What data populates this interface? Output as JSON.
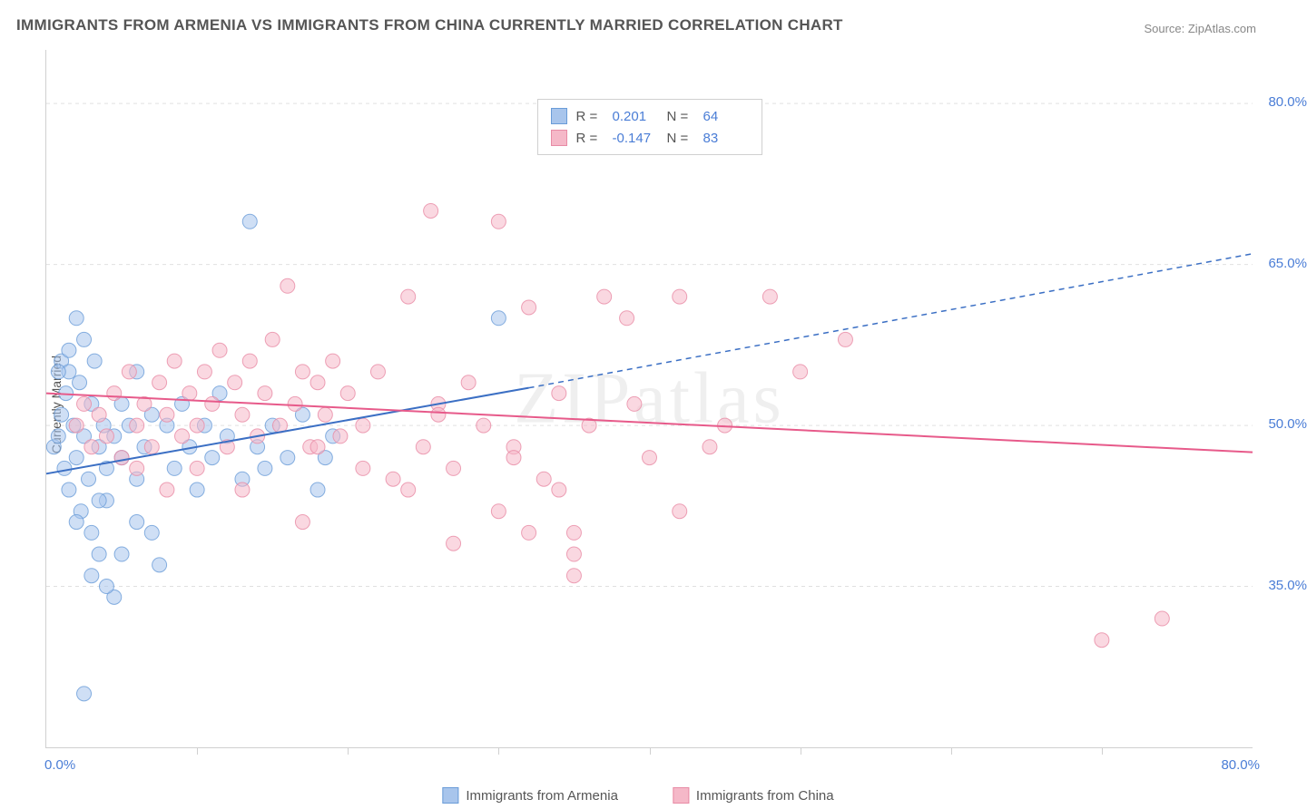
{
  "title": "IMMIGRANTS FROM ARMENIA VS IMMIGRANTS FROM CHINA CURRENTLY MARRIED CORRELATION CHART",
  "source_prefix": "Source: ",
  "source_name": "ZipAtlas.com",
  "ylabel": "Currently Married",
  "watermark": "ZIPatlas",
  "chart": {
    "type": "scatter",
    "xlim": [
      0,
      80
    ],
    "ylim": [
      20,
      85
    ],
    "x_min_label": "0.0%",
    "x_max_label": "80.0%",
    "y_ticks": [
      35.0,
      50.0,
      65.0,
      80.0
    ],
    "y_tick_labels": [
      "35.0%",
      "50.0%",
      "65.0%",
      "80.0%"
    ],
    "x_tick_positions": [
      0,
      10,
      20,
      30,
      40,
      50,
      60,
      70,
      80
    ],
    "background_color": "#ffffff",
    "grid_color": "#e0e0e0",
    "border_color": "#d0d0d0",
    "marker_radius": 8,
    "marker_opacity": 0.55,
    "line_width": 2,
    "dash_pattern": "6,5",
    "series": [
      {
        "name": "Immigrants from Armenia",
        "color_fill": "#a8c5ec",
        "color_stroke": "#6a9cd8",
        "line_color": "#3b6fc4",
        "R": "0.201",
        "N": "64",
        "trend_start": {
          "x": 0,
          "y": 45.5
        },
        "trend_solid_end": {
          "x": 32,
          "y": 53.5
        },
        "trend_end": {
          "x": 80,
          "y": 66
        },
        "points": [
          [
            0.5,
            48
          ],
          [
            0.8,
            49
          ],
          [
            1,
            51
          ],
          [
            1,
            56
          ],
          [
            1.2,
            46
          ],
          [
            1.3,
            53
          ],
          [
            1.5,
            55
          ],
          [
            1.5,
            44
          ],
          [
            1.8,
            50
          ],
          [
            2,
            60
          ],
          [
            2,
            47
          ],
          [
            2.2,
            54
          ],
          [
            2.3,
            42
          ],
          [
            2.5,
            58
          ],
          [
            2.5,
            49
          ],
          [
            2.8,
            45
          ],
          [
            3,
            52
          ],
          [
            3,
            40
          ],
          [
            3.2,
            56
          ],
          [
            3.5,
            48
          ],
          [
            3.5,
            38
          ],
          [
            3.8,
            50
          ],
          [
            4,
            46
          ],
          [
            4,
            43
          ],
          [
            4.5,
            49
          ],
          [
            4.5,
            34
          ],
          [
            5,
            52
          ],
          [
            5,
            47
          ],
          [
            5.5,
            50
          ],
          [
            6,
            45
          ],
          [
            6,
            55
          ],
          [
            6.5,
            48
          ],
          [
            7,
            51
          ],
          [
            7,
            40
          ],
          [
            7.5,
            37
          ],
          [
            8,
            50
          ],
          [
            8.5,
            46
          ],
          [
            9,
            52
          ],
          [
            9.5,
            48
          ],
          [
            10,
            44
          ],
          [
            10.5,
            50
          ],
          [
            11,
            47
          ],
          [
            11.5,
            53
          ],
          [
            12,
            49
          ],
          [
            13,
            45
          ],
          [
            13.5,
            69
          ],
          [
            14,
            48
          ],
          [
            14.5,
            46
          ],
          [
            15,
            50
          ],
          [
            16,
            47
          ],
          [
            17,
            51
          ],
          [
            18,
            44
          ],
          [
            18.5,
            47
          ],
          [
            19,
            49
          ],
          [
            30,
            60
          ],
          [
            2.5,
            25
          ],
          [
            3,
            36
          ],
          [
            4,
            35
          ],
          [
            1.5,
            57
          ],
          [
            0.8,
            55
          ],
          [
            2,
            41
          ],
          [
            3.5,
            43
          ],
          [
            5,
            38
          ],
          [
            6,
            41
          ]
        ]
      },
      {
        "name": "Immigrants from China",
        "color_fill": "#f5b8c8",
        "color_stroke": "#e88ba5",
        "line_color": "#e75a8a",
        "R": "-0.147",
        "N": "83",
        "trend_start": {
          "x": 0,
          "y": 53
        },
        "trend_solid_end": {
          "x": 80,
          "y": 47.5
        },
        "trend_end": {
          "x": 80,
          "y": 47.5
        },
        "points": [
          [
            2,
            50
          ],
          [
            2.5,
            52
          ],
          [
            3,
            48
          ],
          [
            3.5,
            51
          ],
          [
            4,
            49
          ],
          [
            4.5,
            53
          ],
          [
            5,
            47
          ],
          [
            5.5,
            55
          ],
          [
            6,
            50
          ],
          [
            6.5,
            52
          ],
          [
            7,
            48
          ],
          [
            7.5,
            54
          ],
          [
            8,
            51
          ],
          [
            8.5,
            56
          ],
          [
            9,
            49
          ],
          [
            9.5,
            53
          ],
          [
            10,
            50
          ],
          [
            10.5,
            55
          ],
          [
            11,
            52
          ],
          [
            11.5,
            57
          ],
          [
            12,
            48
          ],
          [
            12.5,
            54
          ],
          [
            13,
            51
          ],
          [
            13.5,
            56
          ],
          [
            14,
            49
          ],
          [
            14.5,
            53
          ],
          [
            15,
            58
          ],
          [
            15.5,
            50
          ],
          [
            16,
            63
          ],
          [
            16.5,
            52
          ],
          [
            17,
            55
          ],
          [
            17.5,
            48
          ],
          [
            18,
            54
          ],
          [
            18.5,
            51
          ],
          [
            19,
            56
          ],
          [
            19.5,
            49
          ],
          [
            20,
            53
          ],
          [
            21,
            50
          ],
          [
            22,
            55
          ],
          [
            23,
            45
          ],
          [
            24,
            62
          ],
          [
            25,
            48
          ],
          [
            25.5,
            70
          ],
          [
            26,
            52
          ],
          [
            27,
            46
          ],
          [
            28,
            54
          ],
          [
            29,
            50
          ],
          [
            30,
            69
          ],
          [
            30,
            42
          ],
          [
            31,
            48
          ],
          [
            32,
            61
          ],
          [
            33,
            45
          ],
          [
            34,
            53
          ],
          [
            35,
            40
          ],
          [
            35,
            36
          ],
          [
            36,
            50
          ],
          [
            37,
            62
          ],
          [
            38.5,
            60
          ],
          [
            40,
            47
          ],
          [
            42,
            62
          ],
          [
            42,
            42
          ],
          [
            45,
            50
          ],
          [
            48,
            62
          ],
          [
            50,
            55
          ],
          [
            53,
            58
          ],
          [
            13,
            44
          ],
          [
            17,
            41
          ],
          [
            24,
            44
          ],
          [
            27,
            39
          ],
          [
            32,
            40
          ],
          [
            6,
            46
          ],
          [
            8,
            44
          ],
          [
            10,
            46
          ],
          [
            74,
            32
          ],
          [
            70,
            30
          ],
          [
            35,
            38
          ],
          [
            18,
            48
          ],
          [
            21,
            46
          ],
          [
            26,
            51
          ],
          [
            31,
            47
          ],
          [
            34,
            44
          ],
          [
            39,
            52
          ],
          [
            44,
            48
          ]
        ]
      }
    ]
  }
}
